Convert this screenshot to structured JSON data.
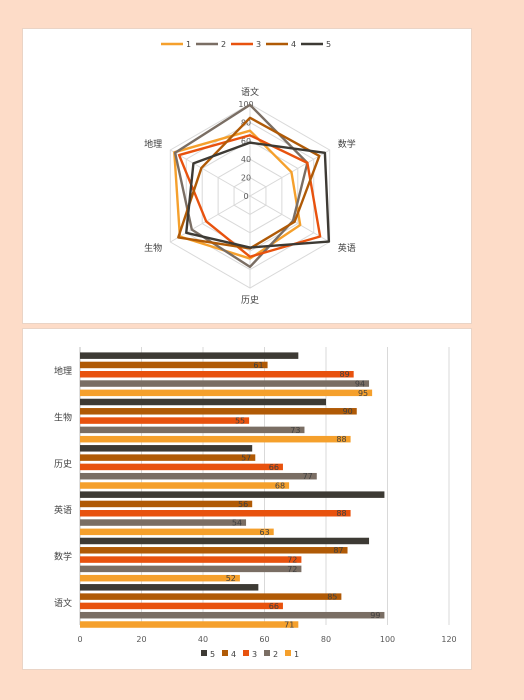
{
  "colors": {
    "5": "#3d3a34",
    "4": "#b05a06",
    "3": "#e8520e",
    "2": "#7a6e64",
    "1": "#f5a02c"
  },
  "chart_data": [
    {
      "type": "radar",
      "categories": [
        "语文",
        "数学",
        "英语",
        "历史",
        "生物",
        "地理"
      ],
      "rlim": [
        0,
        100
      ],
      "rticks": [
        0,
        20,
        40,
        60,
        80,
        100
      ],
      "legend_position": "top",
      "series": [
        {
          "name": "1",
          "values": [
            71,
            52,
            63,
            68,
            88,
            95
          ]
        },
        {
          "name": "2",
          "values": [
            99,
            72,
            54,
            77,
            73,
            94
          ]
        },
        {
          "name": "3",
          "values": [
            66,
            72,
            88,
            66,
            55,
            89
          ]
        },
        {
          "name": "4",
          "values": [
            85,
            87,
            56,
            57,
            90,
            61
          ]
        },
        {
          "name": "5",
          "values": [
            58,
            94,
            99,
            56,
            80,
            71
          ]
        }
      ]
    },
    {
      "type": "bar",
      "orientation": "horizontal",
      "categories": [
        "语文",
        "数学",
        "英语",
        "历史",
        "生物",
        "地理"
      ],
      "xlim": [
        0,
        120
      ],
      "xticks": [
        0,
        20,
        40,
        60,
        80,
        100,
        120
      ],
      "grid": true,
      "legend_position": "bottom",
      "legend_order": [
        "5",
        "4",
        "3",
        "2",
        "1"
      ],
      "series": [
        {
          "name": "1",
          "values": [
            71,
            52,
            63,
            68,
            88,
            95
          ]
        },
        {
          "name": "2",
          "values": [
            99,
            72,
            54,
            77,
            73,
            94
          ]
        },
        {
          "name": "3",
          "values": [
            66,
            72,
            88,
            66,
            55,
            89
          ]
        },
        {
          "name": "4",
          "values": [
            85,
            87,
            56,
            57,
            90,
            61
          ]
        },
        {
          "name": "5",
          "values": [
            58,
            94,
            99,
            56,
            80,
            71
          ]
        }
      ]
    }
  ]
}
